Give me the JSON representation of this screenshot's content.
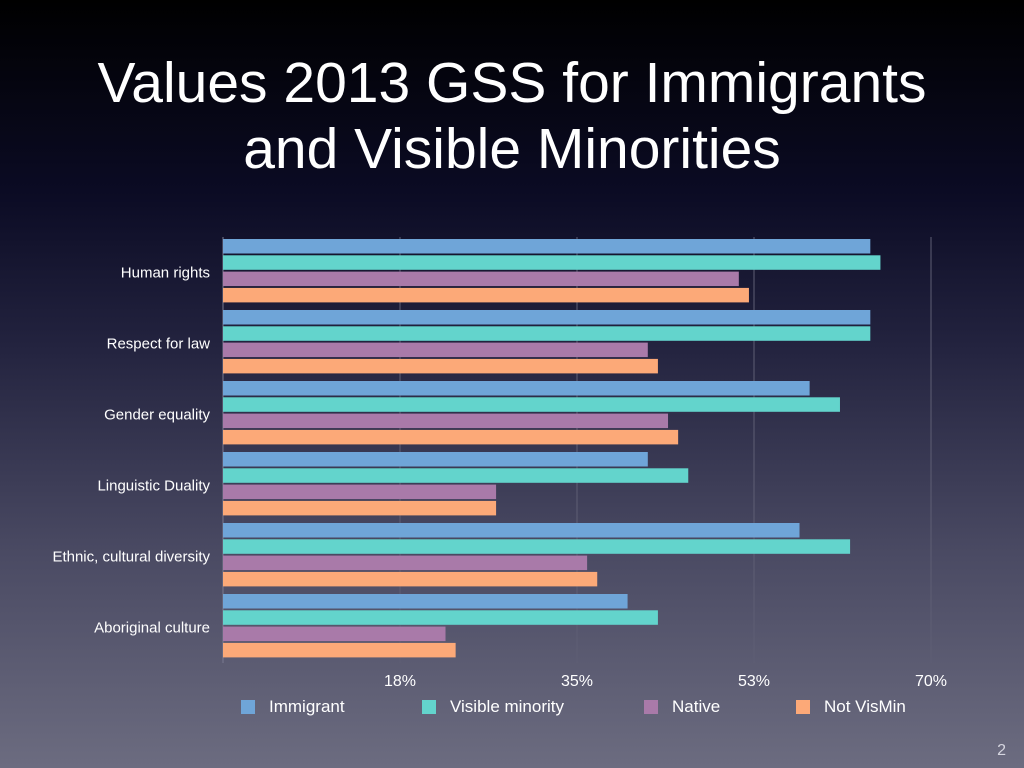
{
  "slide": {
    "title_line1": "Values 2013 GSS for Immigrants",
    "title_line2": "and Visible Minorities",
    "page_number": "2"
  },
  "chart_data": {
    "type": "bar",
    "orientation": "horizontal",
    "title": "Values 2013 GSS for Immigrants and Visible Minorities",
    "xlabel": "",
    "ylabel": "",
    "xlim": [
      0,
      70
    ],
    "grid": true,
    "legend_position": "bottom",
    "tick_values": [
      17.5,
      35,
      52.5,
      70
    ],
    "tick_labels": [
      "18%",
      "35%",
      "53%",
      "70%"
    ],
    "categories": [
      "Human rights",
      "Respect for law",
      "Gender equality",
      "Linguistic Duality",
      "Ethnic, cultural diversity",
      "Aboriginal culture"
    ],
    "series": [
      {
        "name": "Immigrant",
        "color": "#6fa5d8",
        "values": [
          64,
          64,
          58,
          42,
          57,
          40
        ]
      },
      {
        "name": "Visible minority",
        "color": "#63d4cc",
        "values": [
          65,
          64,
          61,
          46,
          62,
          43
        ]
      },
      {
        "name": "Native",
        "color": "#a97aa9",
        "values": [
          51,
          42,
          44,
          27,
          36,
          22
        ]
      },
      {
        "name": "Not VisMin",
        "color": "#fca978",
        "values": [
          52,
          43,
          45,
          27,
          37,
          23
        ]
      }
    ]
  }
}
